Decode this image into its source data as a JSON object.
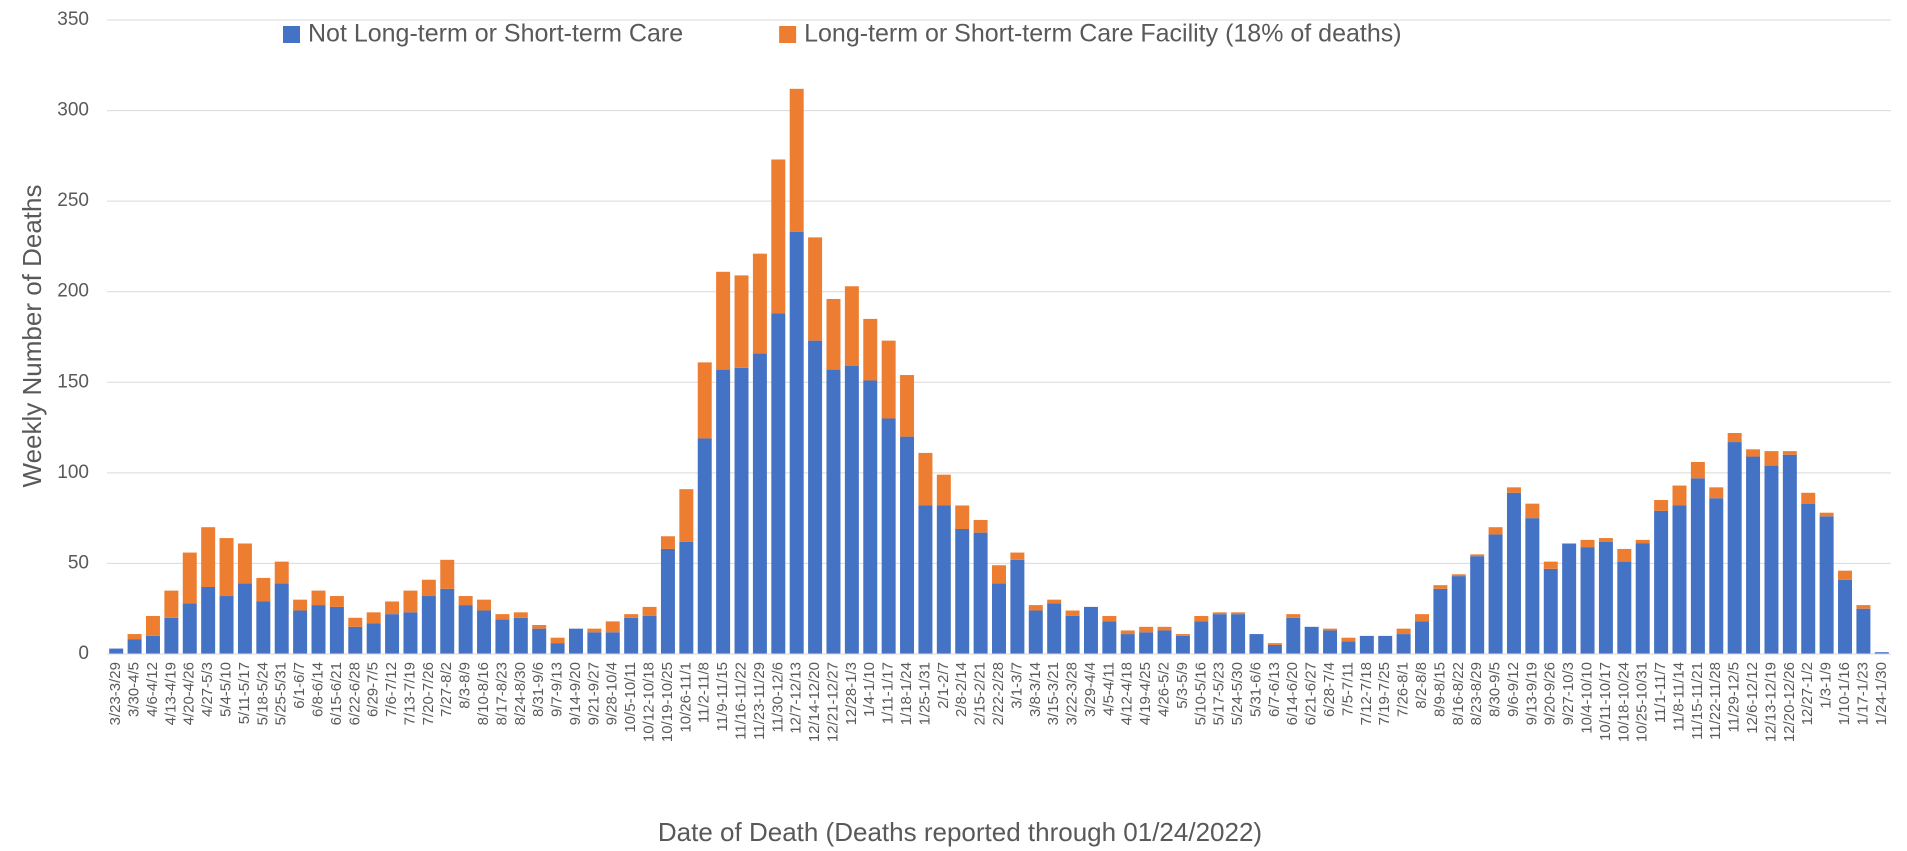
{
  "chart_data": {
    "type": "stacked_bar",
    "y_label": "Weekly Number of Deaths",
    "x_label": "Date of Death (Deaths reported through 01/24/2022)",
    "categories": [
      "3/23-3/29",
      "3/30-4/5",
      "4/6-4/12",
      "4/13-4/19",
      "4/20-4/26",
      "4/27-5/3",
      "5/4-5/10",
      "5/11-5/17",
      "5/18-5/24",
      "5/25-5/31",
      "6/1-6/7",
      "6/8-6/14",
      "6/15-6/21",
      "6/22-6/28",
      "6/29-7/5",
      "7/6-7/12",
      "7/13-7/19",
      "7/20-7/26",
      "7/27-8/2",
      "8/3-8/9",
      "8/10-8/16",
      "8/17-8/23",
      "8/24-8/30",
      "8/31-9/6",
      "9/7-9/13",
      "9/14-9/20",
      "9/21-9/27",
      "9/28-10/4",
      "10/5-10/11",
      "10/12-10/18",
      "10/19-10/25",
      "10/26-11/1",
      "11/2-11/8",
      "11/9-11/15",
      "11/16-11/22",
      "11/23-11/29",
      "11/30-12/6",
      "12/7-12/13",
      "12/14-12/20",
      "12/21-12/27",
      "12/28-1/3",
      "1/4-1/10",
      "1/11-1/17",
      "1/18-1/24",
      "1/25-1/31",
      "2/1-2/7",
      "2/8-2/14",
      "2/15-2/21",
      "2/22-2/28",
      "3/1-3/7",
      "3/8-3/14",
      "3/15-3/21",
      "3/22-3/28",
      "3/29-4/4",
      "4/5-4/11",
      "4/12-4/18",
      "4/19-4/25",
      "4/26-5/2",
      "5/3-5/9",
      "5/10-5/16",
      "5/17-5/23",
      "5/24-5/30",
      "5/31-6/6",
      "6/7-6/13",
      "6/14-6/20",
      "6/21-6/27",
      "6/28-7/4",
      "7/5-7/11",
      "7/12-7/18",
      "7/19-7/25",
      "7/26-8/1",
      "8/2-8/8",
      "8/9-8/15",
      "8/16-8/22",
      "8/23-8/29",
      "8/30-9/5",
      "9/6-9/12",
      "9/13-9/19",
      "9/20-9/26",
      "9/27-10/3",
      "10/4-10/10",
      "10/11-10/17",
      "10/18-10/24",
      "10/25-10/31",
      "11/1-11/7",
      "11/8-11/14",
      "11/15-11/21",
      "11/22-11/28",
      "11/29-12/5",
      "12/6-12/12",
      "12/13-12/19",
      "12/20-12/26",
      "12/27-1/2",
      "1/3-1/9",
      "1/10-1/16",
      "1/17-1/23",
      "1/24-1/30"
    ],
    "series": [
      {
        "name": "Not Long-term or Short-term Care",
        "color": "#4472c4",
        "values": [
          3,
          8,
          10,
          20,
          28,
          37,
          32,
          39,
          29,
          39,
          24,
          27,
          26,
          15,
          17,
          22,
          23,
          32,
          36,
          27,
          24,
          19,
          20,
          14,
          6,
          14,
          12,
          12,
          20,
          21,
          58,
          62,
          119,
          157,
          158,
          166,
          188,
          233,
          173,
          157,
          159,
          151,
          130,
          120,
          82,
          82,
          69,
          67,
          39,
          52,
          24,
          28,
          21,
          26,
          18,
          11,
          12,
          13,
          10,
          18,
          22,
          22,
          11,
          5,
          20,
          15,
          13,
          7,
          10,
          10,
          11,
          18,
          36,
          43,
          54,
          66,
          89,
          75,
          47,
          61,
          59,
          62,
          51,
          61,
          79,
          82,
          97,
          86,
          117,
          109,
          104,
          110,
          83,
          76,
          41,
          25,
          1
        ]
      },
      {
        "name": "Long-term or Short-term Care Facility (18% of deaths)",
        "color": "#ed7d31",
        "values": [
          0,
          3,
          11,
          15,
          28,
          33,
          32,
          22,
          13,
          12,
          6,
          8,
          6,
          5,
          6,
          7,
          12,
          9,
          16,
          5,
          6,
          3,
          3,
          2,
          3,
          0,
          2,
          6,
          2,
          5,
          7,
          29,
          42,
          54,
          51,
          55,
          85,
          79,
          57,
          39,
          44,
          34,
          43,
          34,
          29,
          17,
          13,
          7,
          10,
          4,
          3,
          2,
          3,
          0,
          3,
          2,
          3,
          2,
          1,
          3,
          1,
          1,
          0,
          1,
          2,
          0,
          1,
          2,
          0,
          0,
          3,
          4,
          2,
          1,
          1,
          4,
          3,
          8,
          4,
          0,
          4,
          2,
          7,
          2,
          6,
          11,
          9,
          6,
          5,
          4,
          8,
          2,
          6,
          2,
          5,
          2,
          0
        ]
      }
    ],
    "ylim": [
      0,
      350
    ],
    "yticks": [
      0,
      50,
      100,
      150,
      200,
      250,
      300,
      350
    ],
    "grid": true,
    "legend": "top"
  }
}
